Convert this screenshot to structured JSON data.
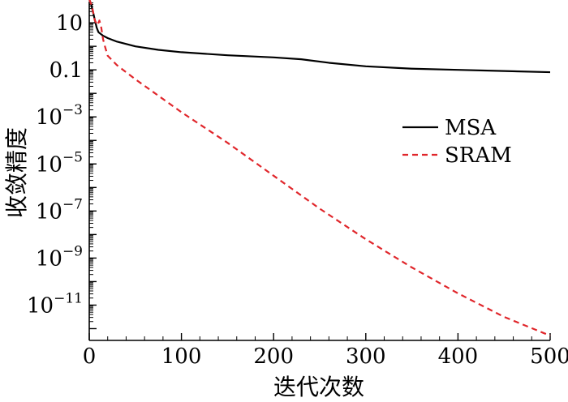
{
  "chart_data": {
    "type": "line",
    "title": "",
    "xlabel": "迭代次数",
    "ylabel": "收敛精度",
    "xlim": [
      0,
      500
    ],
    "ylim_log10": [
      -12.5,
      1.9
    ],
    "yscale": "log",
    "grid": false,
    "legend_position": "right",
    "x_ticks": [
      0,
      100,
      200,
      300,
      400,
      500
    ],
    "y_ticks": [
      {
        "exp": 1,
        "base": "10",
        "sup": ""
      },
      {
        "exp": -1,
        "base": "0.1",
        "sup": ""
      },
      {
        "exp": -3,
        "base": "10",
        "sup": "−3"
      },
      {
        "exp": -5,
        "base": "10",
        "sup": "−5"
      },
      {
        "exp": -7,
        "base": "10",
        "sup": "−7"
      },
      {
        "exp": -9,
        "base": "10",
        "sup": "−9"
      },
      {
        "exp": -11,
        "base": "10",
        "sup": "−11"
      }
    ],
    "series": [
      {
        "name": "MSA",
        "color": "#000000",
        "dash": "solid",
        "x": [
          0,
          2,
          5,
          8,
          10,
          15,
          20,
          30,
          50,
          75,
          100,
          150,
          200,
          230,
          260,
          300,
          350,
          400,
          450,
          500
        ],
        "y_log10": [
          2.0,
          1.8,
          1.3,
          0.8,
          0.6,
          0.45,
          0.35,
          0.2,
          0.0,
          -0.15,
          -0.25,
          -0.38,
          -0.47,
          -0.55,
          -0.7,
          -0.85,
          -0.95,
          -1.0,
          -1.05,
          -1.1
        ]
      },
      {
        "name": "SRAM",
        "color": "#e0262b",
        "dash": "dashed",
        "x": [
          0,
          3,
          6,
          9,
          11,
          13,
          15,
          17,
          20,
          30,
          50,
          75,
          100,
          150,
          200,
          250,
          300,
          350,
          400,
          450,
          500
        ],
        "y_log10": [
          2.0,
          1.7,
          1.1,
          0.9,
          1.1,
          0.8,
          0.3,
          0.0,
          -0.4,
          -0.8,
          -1.4,
          -2.1,
          -2.8,
          -4.1,
          -5.5,
          -6.9,
          -8.2,
          -9.4,
          -10.5,
          -11.5,
          -12.3
        ]
      }
    ]
  }
}
